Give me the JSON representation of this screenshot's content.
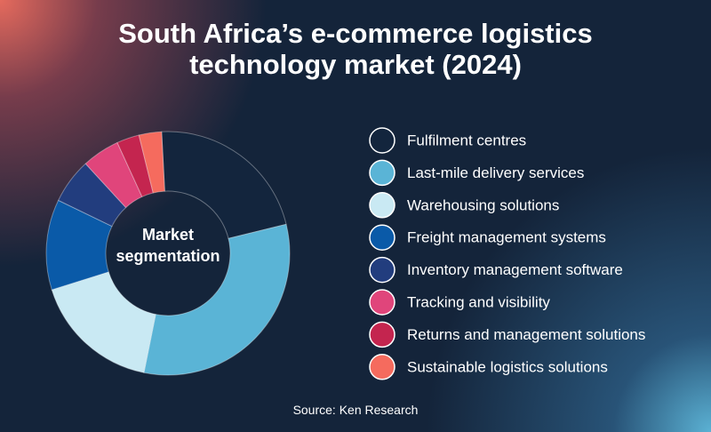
{
  "chart_data": {
    "type": "pie",
    "title": "South Africa’s e-commerce logistics technology market (2024)",
    "center_label": "Market segmentation",
    "source": "Source: Ken Research",
    "categories": [
      "Fulfilment centres",
      "Last-mile delivery services",
      "Warehousing solutions",
      "Freight management systems",
      "Inventory management software",
      "Tracking and visibility",
      "Returns and management solutions",
      "Sustainable logistics solutions"
    ],
    "values": [
      22,
      32,
      17,
      12,
      6,
      5,
      3,
      3
    ],
    "colors": [
      "#13253d",
      "#5ab4d6",
      "#c9e9f3",
      "#0a5aa8",
      "#223d7e",
      "#e0457b",
      "#c4254f",
      "#f56b5e"
    ]
  }
}
